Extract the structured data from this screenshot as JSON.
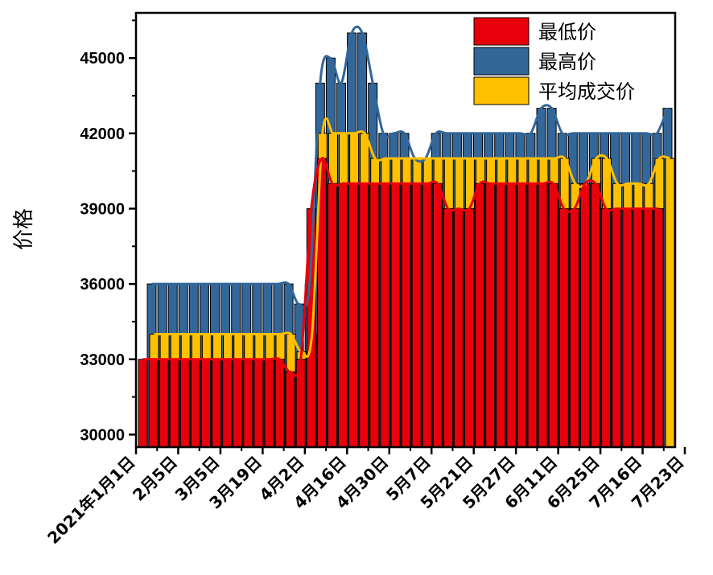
{
  "chart_data": {
    "type": "bar",
    "title": "",
    "xlabel": "",
    "ylabel": "价格",
    "ylim": [
      29500,
      46800
    ],
    "yticks": [
      30000,
      33000,
      36000,
      39000,
      42000,
      45000
    ],
    "categories": [
      "2021年1月1日",
      "",
      "",
      "",
      "",
      "2月5日",
      "",
      "",
      "",
      "3月5日",
      "",
      "",
      "",
      "3月19日",
      "",
      "",
      "4月2日",
      "",
      "",
      "4月16日",
      "",
      "",
      "",
      "",
      "4月30日",
      "",
      "",
      "",
      "5月7日",
      "",
      "",
      "5月21日",
      "",
      "",
      "5月27日",
      "",
      "",
      "",
      "6月11日",
      "",
      "",
      "",
      "6月25日",
      "",
      "",
      "",
      "7月16日",
      "",
      "",
      "7月23日"
    ],
    "x_tick_labels": [
      "2021年1月1日",
      "2月5日",
      "3月5日",
      "3月19日",
      "4月2日",
      "4月16日",
      "4月30日",
      "5月7日",
      "5月21日",
      "5月27日",
      "6月11日",
      "6月25日",
      "7月16日",
      "7月23日"
    ],
    "series": [
      {
        "name": "最低价",
        "color": "#e8000b",
        "values": [
          33000,
          33000,
          33000,
          33000,
          33000,
          33000,
          33000,
          33000,
          33000,
          33000,
          33000,
          33000,
          33000,
          33000,
          32500,
          33000,
          39000,
          41000,
          40000,
          40000,
          40000,
          40000,
          40000,
          40000,
          40000,
          40000,
          40000,
          40000,
          40000,
          39000,
          39000,
          39000,
          40000,
          40000,
          40000,
          40000,
          40000,
          40000,
          40000,
          40000,
          39000,
          39000,
          40000,
          40000,
          39000,
          39000,
          39000,
          39000,
          39000,
          39000
        ]
      },
      {
        "name": "最高价",
        "color": "#336699",
        "values": [
          36000,
          36000,
          36000,
          36000,
          36000,
          36000,
          36000,
          36000,
          36000,
          36000,
          36000,
          36000,
          36000,
          36000,
          35200,
          36000,
          44000,
          45000,
          44000,
          46000,
          46000,
          44000,
          42000,
          42000,
          42000,
          41000,
          41000,
          42000,
          42000,
          42000,
          42000,
          42000,
          42000,
          42000,
          42000,
          42000,
          42000,
          43000,
          43000,
          42000,
          42000,
          42000,
          42000,
          42000,
          42000,
          42000,
          42000,
          42000,
          42000,
          43000
        ]
      },
      {
        "name": "平均成交价",
        "color": "#ffc000",
        "values": [
          34000,
          34000,
          34000,
          34000,
          34000,
          34000,
          34000,
          34000,
          34000,
          34000,
          34000,
          34000,
          34000,
          34000,
          33300,
          34000,
          42000,
          42000,
          42000,
          42000,
          42000,
          41000,
          41000,
          41000,
          41000,
          41000,
          41000,
          41000,
          41000,
          41000,
          41000,
          41000,
          41000,
          41000,
          41000,
          41000,
          41000,
          41000,
          41000,
          41000,
          40000,
          40000,
          41000,
          41000,
          40000,
          40000,
          40000,
          40000,
          41000,
          41000
        ]
      }
    ],
    "grid": false,
    "legend": "top-right"
  }
}
